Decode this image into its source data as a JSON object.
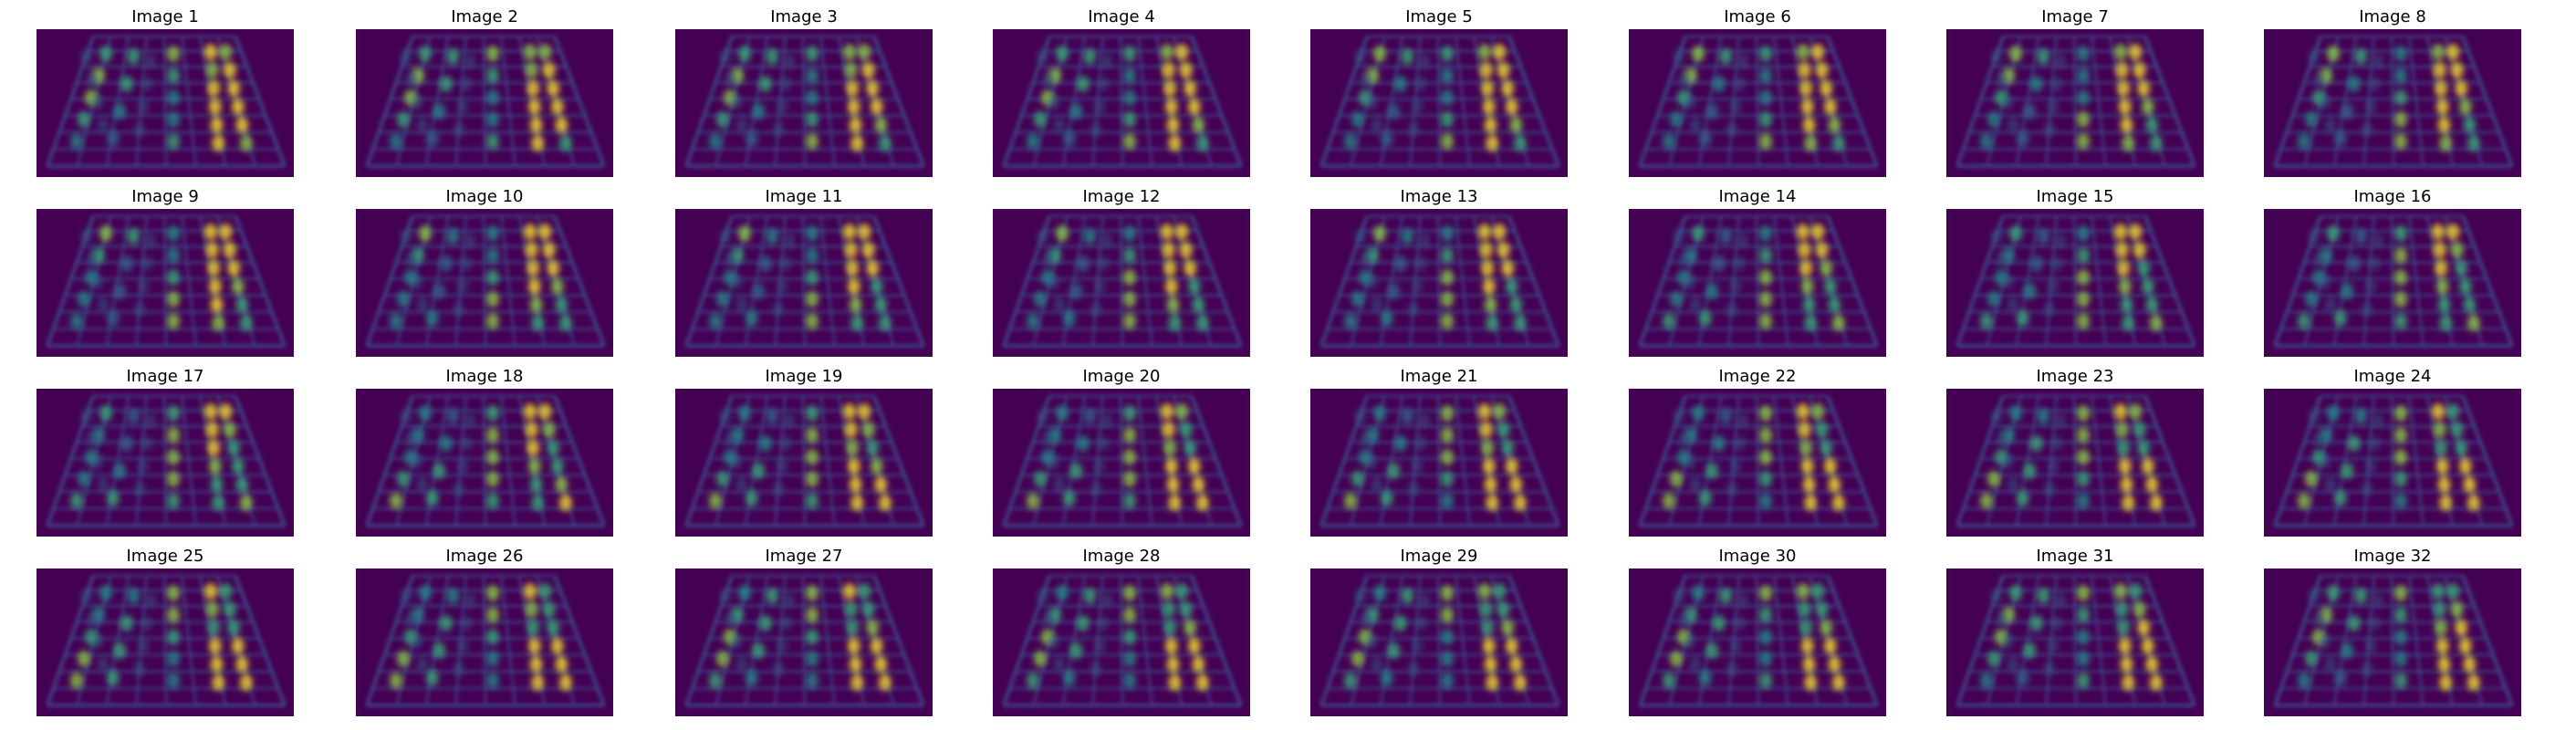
{
  "figure": {
    "colormap": "viridis",
    "background_color": "#440154",
    "panels": [
      {
        "title": "Image 1"
      },
      {
        "title": "Image 2"
      },
      {
        "title": "Image 3"
      },
      {
        "title": "Image 4"
      },
      {
        "title": "Image 5"
      },
      {
        "title": "Image 6"
      },
      {
        "title": "Image 7"
      },
      {
        "title": "Image 8"
      },
      {
        "title": "Image 9"
      },
      {
        "title": "Image 10"
      },
      {
        "title": "Image 11"
      },
      {
        "title": "Image 12"
      },
      {
        "title": "Image 13"
      },
      {
        "title": "Image 14"
      },
      {
        "title": "Image 15"
      },
      {
        "title": "Image 16"
      },
      {
        "title": "Image 17"
      },
      {
        "title": "Image 18"
      },
      {
        "title": "Image 19"
      },
      {
        "title": "Image 20"
      },
      {
        "title": "Image 21"
      },
      {
        "title": "Image 22"
      },
      {
        "title": "Image 23"
      },
      {
        "title": "Image 24"
      },
      {
        "title": "Image 25"
      },
      {
        "title": "Image 26"
      },
      {
        "title": "Image 27"
      },
      {
        "title": "Image 28"
      },
      {
        "title": "Image 29"
      },
      {
        "title": "Image 30"
      },
      {
        "title": "Image 31"
      },
      {
        "title": "Image 32"
      }
    ]
  }
}
